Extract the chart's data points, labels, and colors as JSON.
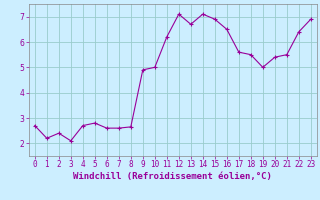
{
  "x": [
    0,
    1,
    2,
    3,
    4,
    5,
    6,
    7,
    8,
    9,
    10,
    11,
    12,
    13,
    14,
    15,
    16,
    17,
    18,
    19,
    20,
    21,
    22,
    23
  ],
  "y": [
    2.7,
    2.2,
    2.4,
    2.1,
    2.7,
    2.8,
    2.6,
    2.6,
    2.65,
    4.9,
    5.0,
    6.2,
    7.1,
    6.7,
    7.1,
    6.9,
    6.5,
    5.6,
    5.5,
    5.0,
    5.4,
    5.5,
    6.4,
    6.9
  ],
  "line_color": "#990099",
  "marker": "+",
  "marker_size": 3,
  "background_color": "#cceeff",
  "grid_color": "#99cccc",
  "xlabel": "Windchill (Refroidissement éolien,°C)",
  "xlabel_color": "#990099",
  "tick_color": "#990099",
  "xlim": [
    -0.5,
    23.5
  ],
  "ylim": [
    1.5,
    7.5
  ],
  "yticks": [
    2,
    3,
    4,
    5,
    6,
    7
  ],
  "xticks": [
    0,
    1,
    2,
    3,
    4,
    5,
    6,
    7,
    8,
    9,
    10,
    11,
    12,
    13,
    14,
    15,
    16,
    17,
    18,
    19,
    20,
    21,
    22,
    23
  ],
  "tick_labelsize": 5.5,
  "xlabel_fontsize": 6.5,
  "spine_color": "#888888"
}
